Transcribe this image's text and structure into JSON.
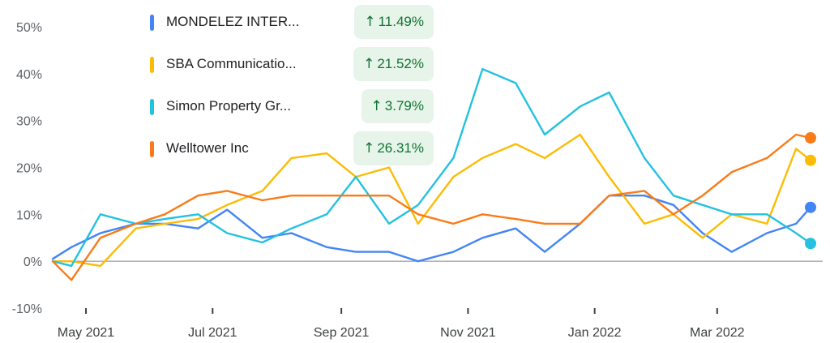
{
  "chart_data": {
    "type": "line",
    "x": [
      "2021-04-22",
      "2021-05-01",
      "2021-05-15",
      "2021-06-01",
      "2021-06-15",
      "2021-07-01",
      "2021-07-15",
      "2021-08-01",
      "2021-08-15",
      "2021-09-01",
      "2021-09-15",
      "2021-10-01",
      "2021-10-15",
      "2021-11-01",
      "2021-11-15",
      "2021-12-01",
      "2021-12-15",
      "2022-01-01",
      "2022-01-15",
      "2022-02-01",
      "2022-02-15",
      "2022-03-01",
      "2022-03-15",
      "2022-04-01",
      "2022-04-15",
      "2022-04-22"
    ],
    "ylim": [
      -10,
      50
    ],
    "yticks": [
      "50%",
      "40%",
      "30%",
      "20%",
      "10%",
      "0%",
      "-10%"
    ],
    "xticks": [
      "May 2021",
      "Jul 2021",
      "Sep 2021",
      "Nov 2021",
      "Jan 2022",
      "Mar 2022"
    ],
    "series": [
      {
        "name": "MONDELEZ INTER...",
        "change": "11.49%",
        "color": "#4285f4",
        "values": [
          0.5,
          3,
          6,
          8,
          8,
          7,
          11,
          5,
          6,
          3,
          2,
          2,
          0,
          2,
          5,
          7,
          2,
          8,
          14,
          14,
          12,
          6,
          2,
          6,
          8,
          11.49
        ]
      },
      {
        "name": "SBA Communicatio...",
        "change": "21.52%",
        "color": "#fbbc04",
        "values": [
          0,
          0,
          -1,
          7,
          8,
          9,
          12,
          15,
          22,
          23,
          18,
          20,
          8,
          18,
          22,
          25,
          22,
          27,
          18,
          8,
          10,
          5,
          10,
          8,
          24,
          21.52
        ]
      },
      {
        "name": "Simon Property Gr...",
        "change": "3.79%",
        "color": "#24c1e0",
        "values": [
          0,
          -1,
          10,
          8,
          9,
          10,
          6,
          4,
          7,
          10,
          18,
          8,
          12,
          22,
          41,
          38,
          27,
          33,
          36,
          22,
          14,
          12,
          10,
          10,
          6,
          3.79
        ]
      },
      {
        "name": "Welltower Inc",
        "change": "26.31%",
        "color": "#fa7b17",
        "values": [
          0,
          -4,
          5,
          8,
          10,
          14,
          15,
          13,
          14,
          14,
          14,
          14,
          10,
          8,
          10,
          9,
          8,
          8,
          14,
          15,
          10,
          14,
          19,
          22,
          27,
          26.31
        ]
      }
    ]
  }
}
